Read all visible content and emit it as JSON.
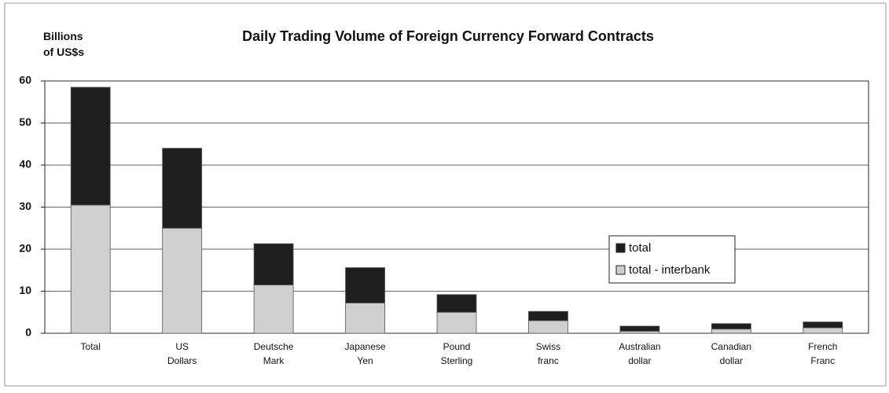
{
  "chart_data": {
    "type": "bar",
    "stacked": true,
    "title": "Daily Trading Volume of Foreign Currency Forward Contracts",
    "y_label": "Billions of US$s",
    "categories": [
      "Total",
      "US Dollars",
      "Deutsche Mark",
      "Japanese Yen",
      "Pound Sterling",
      "Swiss franc",
      "Australian dollar",
      "Canadian dollar",
      "French Franc"
    ],
    "series": [
      {
        "name": "total - interbank",
        "color": "#cfcfcf",
        "values": [
          30.5,
          25,
          11.5,
          7.2,
          5,
          3,
          0.5,
          1,
          1.3
        ]
      },
      {
        "name": "total",
        "color": "#1e1e1e",
        "values": [
          28,
          19,
          9.8,
          8.4,
          4.2,
          2.2,
          1.2,
          1.3,
          1.4
        ]
      }
    ],
    "legend_order": [
      1,
      0
    ],
    "ylim": [
      0,
      60
    ],
    "yticks": [
      0,
      10,
      20,
      30,
      40,
      50,
      60
    ],
    "grid": true
  }
}
